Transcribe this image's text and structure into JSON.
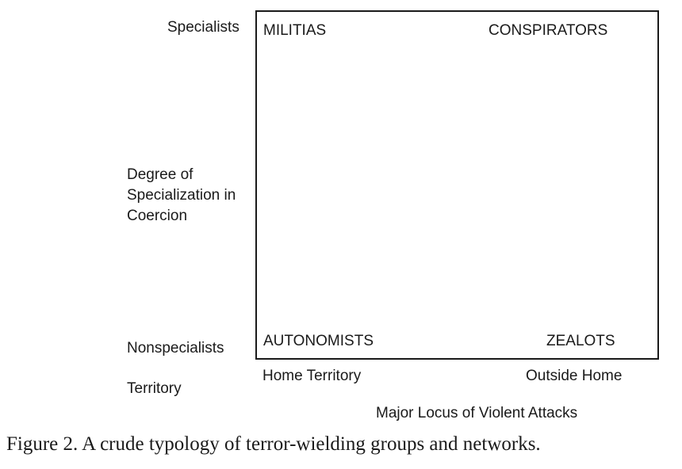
{
  "diagram": {
    "quadrants": {
      "top_left": "MILITIAS",
      "top_right": "CONSPIRATORS",
      "bottom_left": "AUTONOMISTS",
      "bottom_right": "ZEALOTS"
    },
    "y_axis": {
      "top_label": "Specialists",
      "bottom_label": "Nonspecialists",
      "title_lines": [
        "Degree of",
        "Specialization in",
        "Coercion"
      ]
    },
    "x_axis": {
      "left_label": "Home Territory",
      "right_label": "Outside Home",
      "continuation": "Territory",
      "title": "Major Locus of Violent Attacks"
    }
  },
  "caption": "Figure 2.  A crude typology of terror-wielding groups and networks."
}
